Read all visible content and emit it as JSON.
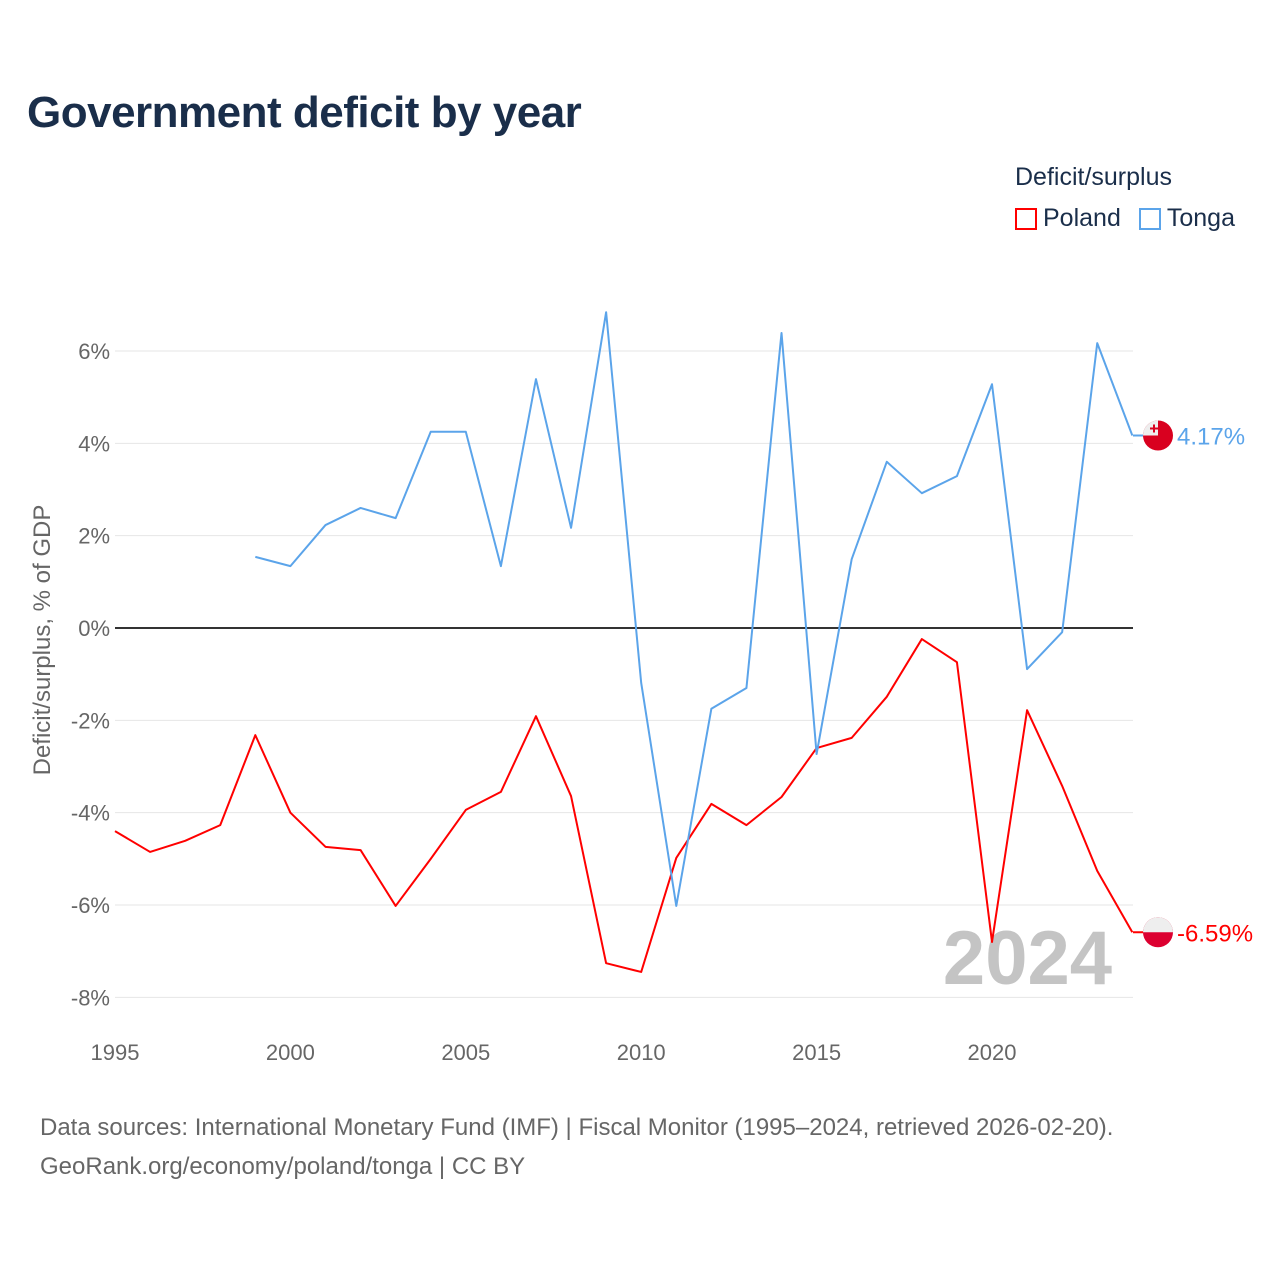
{
  "title": "Government deficit by year",
  "legend": {
    "title": "Deficit/surplus",
    "items": [
      {
        "name": "Poland",
        "color": "#ff0000"
      },
      {
        "name": "Tonga",
        "color": "#5ba4ea"
      }
    ]
  },
  "source_lines": [
    "Data sources: International Monetary Fund (IMF) | Fiscal Monitor (1995–2024, retrieved 2026-02-20).",
    "GeoRank.org/economy/poland/tonga | CC BY"
  ],
  "chart_data": {
    "type": "line",
    "title": "Government deficit by year",
    "xlabel": "",
    "ylabel": "Deficit/surplus, % of GDP",
    "xlim": [
      1995,
      2024
    ],
    "ylim": [
      -8,
      7
    ],
    "x_ticks": [
      1995,
      2000,
      2005,
      2010,
      2015,
      2020
    ],
    "y_ticks": [
      {
        "v": 6,
        "label": "6%"
      },
      {
        "v": 4,
        "label": "4%"
      },
      {
        "v": 2,
        "label": "2%"
      },
      {
        "v": 0,
        "label": "0%"
      },
      {
        "v": -2,
        "label": "-2%"
      },
      {
        "v": -4,
        "label": "-4%"
      },
      {
        "v": -6,
        "label": "-6%"
      },
      {
        "v": -8,
        "label": "-8%"
      }
    ],
    "year_watermark": "2024",
    "series": [
      {
        "name": "Poland",
        "color": "#ff0000",
        "end_label": "-6.59%",
        "x": [
          1995,
          1996,
          1997,
          1998,
          1999,
          2000,
          2001,
          2002,
          2003,
          2004,
          2005,
          2006,
          2007,
          2008,
          2009,
          2010,
          2011,
          2012,
          2013,
          2014,
          2015,
          2016,
          2017,
          2018,
          2019,
          2020,
          2021,
          2022,
          2023,
          2024
        ],
        "values": [
          -4.4,
          -4.85,
          -4.61,
          -4.27,
          -2.32,
          -4.0,
          -4.74,
          -4.81,
          -6.02,
          -5.0,
          -3.94,
          -3.55,
          -1.91,
          -3.64,
          -7.26,
          -7.45,
          -4.98,
          -3.81,
          -4.27,
          -3.66,
          -2.6,
          -2.38,
          -1.49,
          -0.24,
          -0.74,
          -6.8,
          -1.78,
          -3.42,
          -5.26,
          -6.59
        ]
      },
      {
        "name": "Tonga",
        "color": "#5ba4ea",
        "end_label": "4.17%",
        "x": [
          1999,
          2000,
          2001,
          2002,
          2003,
          2004,
          2005,
          2006,
          2007,
          2008,
          2009,
          2010,
          2011,
          2012,
          2013,
          2014,
          2015,
          2016,
          2017,
          2018,
          2019,
          2020,
          2021,
          2022,
          2023,
          2024
        ],
        "values": [
          1.54,
          1.34,
          2.23,
          2.6,
          2.38,
          4.25,
          4.25,
          1.34,
          5.39,
          2.17,
          6.84,
          -1.19,
          -6.02,
          -1.75,
          -1.3,
          6.39,
          -2.73,
          1.49,
          3.6,
          2.92,
          3.29,
          5.28,
          -0.89,
          -0.09,
          6.17,
          4.17
        ]
      }
    ]
  }
}
